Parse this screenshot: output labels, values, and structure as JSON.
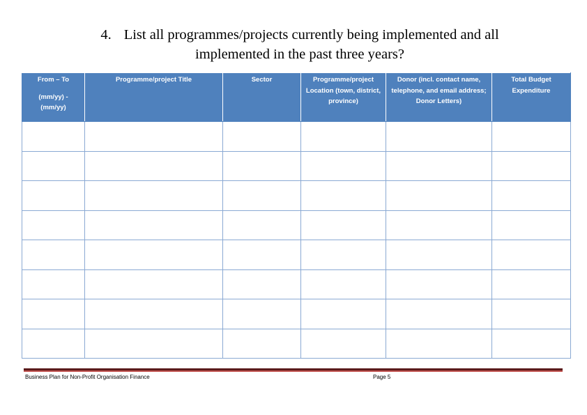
{
  "question": {
    "number": "4.",
    "line1": "List all programmes/projects currently being implemented and all",
    "line2": "implemented in the past three years?"
  },
  "table": {
    "columns": [
      {
        "label": "From – To",
        "sublabel": "(mm/yy) -\n(mm/yy)"
      },
      {
        "label": "Programme/project Title"
      },
      {
        "label": "Sector"
      },
      {
        "label": "Programme/project Location (town, district, province)"
      },
      {
        "label": "Donor (incl. contact name, telephone, and email address; Donor Letters)"
      },
      {
        "label": "Total Budget Expenditure"
      }
    ],
    "empty_rows": 8
  },
  "footer": {
    "left": "Business Plan for Non-Profit Organisation Finance",
    "right": "Page 5"
  },
  "colors": {
    "header_bg": "#4f81bd",
    "border": "#8aa9d3",
    "footer_rule": "#5a1a1a"
  }
}
